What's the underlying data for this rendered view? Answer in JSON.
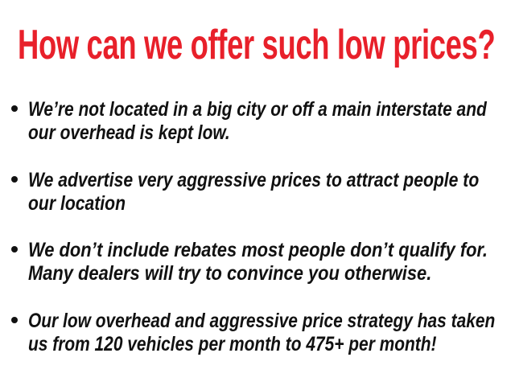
{
  "title": "How can we offer such low prices?",
  "colors": {
    "title": "#e8202a",
    "text": "#111111"
  },
  "bullets": [
    {
      "lines": [
        "We’re not located in a big city or off a main interstate and",
        "our overhead is kept low."
      ]
    },
    {
      "lines": [
        "We advertise very aggressive prices to attract people to",
        "our location"
      ]
    },
    {
      "lines": [
        "We don’t include rebates most people don’t qualify for.",
        "Many dealers will try to convince you otherwise."
      ]
    },
    {
      "lines": [
        "Our low overhead and aggressive price strategy has taken",
        "us from 120 vehicles per month to 475+ per month!"
      ]
    }
  ]
}
